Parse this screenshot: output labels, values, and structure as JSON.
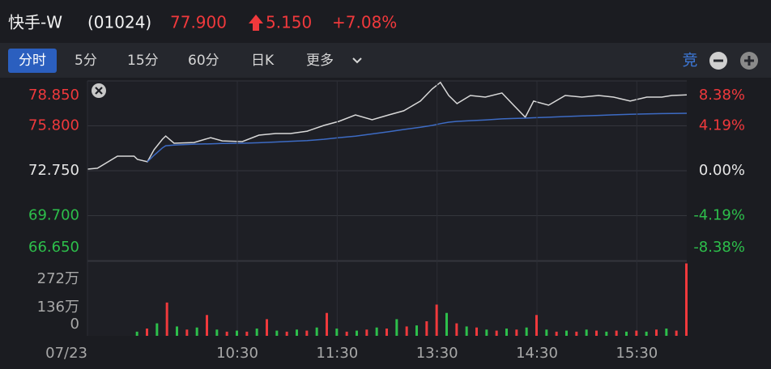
{
  "header": {
    "name": "快手-W",
    "code": "(01024)",
    "price": "77.900",
    "change": "5.150",
    "change_pct": "+7.08%"
  },
  "tabs": [
    "分时",
    "5分",
    "15分",
    "60分",
    "日K",
    "更多"
  ],
  "right_label": "竞",
  "chart_data": [
    {
      "type": "line",
      "x": [
        0,
        6,
        18,
        28,
        30,
        36,
        40,
        45,
        47,
        52,
        64,
        74,
        81,
        93,
        103,
        113,
        122,
        132,
        142,
        151,
        161,
        171,
        181,
        190,
        200,
        207,
        212,
        217,
        222,
        230,
        239,
        249,
        256,
        263,
        268,
        277,
        287,
        297,
        307,
        316,
        326,
        336,
        345,
        351,
        360
      ],
      "xlim": [
        0,
        360
      ],
      "series": [
        {
          "color": "#d9d9d9",
          "values": [
            72.86,
            72.92,
            73.74,
            73.74,
            73.52,
            73.36,
            74.18,
            74.89,
            75.11,
            74.62,
            74.67,
            75.0,
            74.78,
            74.73,
            75.17,
            75.28,
            75.28,
            75.44,
            75.83,
            76.1,
            76.54,
            76.21,
            76.54,
            76.82,
            77.48,
            78.3,
            78.75,
            77.86,
            77.31,
            77.86,
            77.75,
            78.03,
            77.2,
            76.38,
            77.48,
            77.2,
            77.86,
            77.75,
            77.86,
            77.75,
            77.48,
            77.75,
            77.75,
            77.86,
            77.9
          ]
        },
        {
          "color": "#3d6bc4",
          "values": [
            null,
            null,
            null,
            null,
            null,
            73.36,
            73.8,
            74.3,
            74.45,
            74.5,
            74.56,
            74.58,
            74.6,
            74.62,
            74.65,
            74.7,
            74.75,
            74.8,
            74.89,
            75.0,
            75.1,
            75.25,
            75.4,
            75.55,
            75.7,
            75.83,
            75.95,
            76.05,
            76.1,
            76.15,
            76.2,
            76.27,
            76.3,
            76.32,
            76.35,
            76.38,
            76.43,
            76.47,
            76.51,
            76.55,
            76.58,
            76.61,
            76.63,
            76.64,
            76.65
          ]
        }
      ],
      "ylim": [
        66.65,
        78.85
      ],
      "yticks": [
        {
          "value": 78.85,
          "label": "78.850"
        },
        {
          "value": 75.8,
          "label": "75.800"
        },
        {
          "value": 72.75,
          "label": "72.750"
        },
        {
          "value": 69.7,
          "label": "69.700"
        },
        {
          "value": 66.65,
          "label": "66.650"
        }
      ],
      "y2lim": [
        -8.38,
        8.38
      ],
      "y2ticks": [
        {
          "value": 8.38,
          "label": "8.38%"
        },
        {
          "value": 4.19,
          "label": "4.19%"
        },
        {
          "value": 0,
          "label": "0.00%"
        },
        {
          "value": -4.19,
          "label": "-4.19%"
        },
        {
          "value": -8.38,
          "label": "-8.38%"
        }
      ],
      "up_color": "#f0393c",
      "down_color": "#2dbf4b",
      "flat_color": "#e6e6e6",
      "grid": true
    },
    {
      "type": "bar",
      "x": [
        30,
        36,
        42,
        48,
        54,
        60,
        66,
        72,
        78,
        84,
        90,
        96,
        102,
        108,
        114,
        120,
        126,
        132,
        138,
        144,
        150,
        156,
        162,
        168,
        174,
        180,
        186,
        192,
        198,
        204,
        210,
        216,
        222,
        228,
        234,
        240,
        246,
        252,
        258,
        264,
        270,
        276,
        282,
        288,
        294,
        300,
        306,
        312,
        318,
        324,
        330,
        336,
        342,
        348,
        354,
        360
      ],
      "values": [
        20,
        35,
        60,
        160,
        45,
        30,
        40,
        100,
        30,
        20,
        25,
        20,
        35,
        80,
        25,
        20,
        30,
        25,
        40,
        110,
        35,
        20,
        25,
        30,
        40,
        35,
        80,
        45,
        50,
        70,
        150,
        110,
        60,
        45,
        40,
        30,
        25,
        35,
        30,
        40,
        100,
        30,
        20,
        25,
        20,
        30,
        25,
        20,
        25,
        20,
        25,
        20,
        30,
        35,
        25,
        348
      ],
      "colors": [
        "#2dbf4b",
        "#f0393c",
        "#2dbf4b",
        "#f0393c",
        "#2dbf4b",
        "#f0393c",
        "#2dbf4b",
        "#f0393c",
        "#2dbf4b",
        "#f0393c",
        "#2dbf4b",
        "#f0393c",
        "#2dbf4b",
        "#f0393c",
        "#2dbf4b",
        "#f0393c",
        "#2dbf4b",
        "#f0393c",
        "#2dbf4b",
        "#f0393c",
        "#2dbf4b",
        "#f0393c",
        "#2dbf4b",
        "#f0393c",
        "#2dbf4b",
        "#f0393c",
        "#2dbf4b",
        "#f0393c",
        "#2dbf4b",
        "#f0393c",
        "#f0393c",
        "#2dbf4b",
        "#f0393c",
        "#2dbf4b",
        "#f0393c",
        "#2dbf4b",
        "#f0393c",
        "#2dbf4b",
        "#f0393c",
        "#2dbf4b",
        "#f0393c",
        "#2dbf4b",
        "#f0393c",
        "#2dbf4b",
        "#f0393c",
        "#2dbf4b",
        "#f0393c",
        "#2dbf4b",
        "#f0393c",
        "#2dbf4b",
        "#f0393c",
        "#2dbf4b",
        "#f0393c",
        "#2dbf4b",
        "#f0393c",
        "#f0393c"
      ],
      "xlim": [
        0,
        360
      ],
      "xticks": [
        {
          "value": 0,
          "label": "07/23"
        },
        {
          "value": 90,
          "label": "10:30"
        },
        {
          "value": 150,
          "label": "11:30"
        },
        {
          "value": 210,
          "label": "13:30"
        },
        {
          "value": 270,
          "label": "14:30"
        },
        {
          "value": 330,
          "label": "15:30"
        }
      ],
      "ylim": [
        0,
        350
      ],
      "yticks": [
        {
          "value": 272,
          "label": "272万"
        },
        {
          "value": 136,
          "label": "136万"
        },
        0
      ],
      "grid": false
    }
  ]
}
